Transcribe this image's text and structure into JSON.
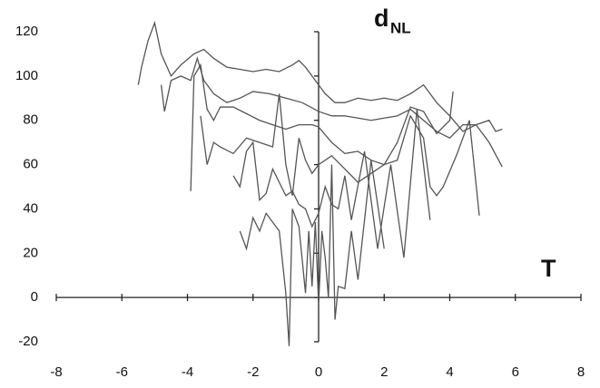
{
  "chart_data": {
    "type": "line",
    "y_label": {
      "main": "d",
      "sub": "NL"
    },
    "x_label": "T",
    "xlim": [
      -8,
      8
    ],
    "xticks": [
      -8,
      -6,
      -4,
      -2,
      0,
      2,
      4,
      6,
      8
    ],
    "ylim": [
      -20,
      120
    ],
    "yticks": [
      -20,
      0,
      20,
      40,
      60,
      80,
      100,
      120
    ],
    "grid": false,
    "series": [
      {
        "color": "#555555",
        "x": [
          -5.5,
          -5.4,
          -5.2,
          -5.0,
          -4.8,
          -4.5,
          -4.2,
          -3.8,
          -3.5,
          -3.2,
          -2.8,
          -2.4,
          -2.0,
          -1.6,
          -1.2,
          -0.8,
          -0.6,
          -0.4,
          -0.2,
          0,
          0.2,
          0.5,
          0.8,
          1.2,
          1.6,
          2.0,
          2.4,
          2.8,
          3.2,
          3.6,
          4.0,
          4.4,
          4.8,
          5.2,
          5.4,
          5.6
        ],
        "values": [
          96,
          104,
          116,
          124,
          110,
          100,
          105,
          110,
          112,
          108,
          104,
          103,
          102,
          103,
          102,
          105,
          107,
          104,
          100,
          96,
          92,
          88,
          88,
          90,
          89,
          90,
          89,
          92,
          96,
          88,
          82,
          75,
          78,
          80,
          75,
          76
        ]
      },
      {
        "color": "#555555",
        "x": [
          -4.8,
          -4.7,
          -4.5,
          -4.2,
          -3.9,
          -3.7,
          -3.5,
          -3.2,
          -2.8,
          -2.4,
          -2.0,
          -1.5,
          -1.0,
          -0.5,
          0,
          0.4,
          0.8,
          1.2,
          1.6,
          2.0,
          2.4,
          2.8,
          3.2,
          3.6,
          4.0,
          4.4,
          4.8,
          5.2,
          5.6
        ],
        "values": [
          96,
          84,
          98,
          100,
          98,
          108,
          98,
          92,
          88,
          90,
          93,
          92,
          90,
          88,
          84,
          82,
          82,
          81,
          80,
          81,
          82,
          85,
          80,
          75,
          72,
          78,
          78,
          70,
          59
        ]
      },
      {
        "color": "#555555",
        "x": [
          -3.9,
          -3.8,
          -3.6,
          -3.4,
          -3.2,
          -3.0,
          -2.6,
          -2.2,
          -1.8,
          -1.4,
          -1.0,
          -0.6,
          -0.2,
          0,
          0.4,
          0.8,
          1.2,
          1.6,
          2.0,
          2.4,
          2.8,
          3.2,
          3.6,
          4.0,
          4.1
        ],
        "values": [
          48,
          100,
          105,
          85,
          80,
          86,
          86,
          83,
          80,
          78,
          76,
          78,
          78,
          77,
          70,
          65,
          66,
          62,
          60,
          70,
          86,
          84,
          74,
          80,
          93
        ]
      },
      {
        "color": "#555555",
        "x": [
          -3.6,
          -3.4,
          -3.2,
          -3.0,
          -2.6,
          -2.2,
          -1.8,
          -1.4,
          -1.2,
          -1.0,
          -0.8,
          -0.6,
          -0.4,
          -0.2,
          0,
          0.4,
          0.8,
          1.2,
          1.6,
          2.0,
          2.4,
          2.8,
          3.2,
          3.4,
          3.6,
          3.8,
          4.2,
          4.6,
          4.9
        ],
        "values": [
          82,
          60,
          70,
          68,
          65,
          72,
          70,
          68,
          92,
          60,
          46,
          72,
          62,
          56,
          60,
          64,
          58,
          52,
          56,
          60,
          62,
          82,
          72,
          50,
          46,
          50,
          64,
          80,
          37
        ]
      },
      {
        "color": "#555555",
        "x": [
          -2.6,
          -2.4,
          -2.2,
          -2.0,
          -1.8,
          -1.6,
          -1.4,
          -1.2,
          -1.0,
          -0.8,
          -0.6,
          -0.4,
          -0.2,
          0,
          0.2,
          0.4,
          0.6,
          0.8,
          1.0,
          1.4,
          1.8,
          2.2,
          2.6,
          3.0,
          3.4
        ],
        "values": [
          55,
          50,
          66,
          70,
          44,
          47,
          58,
          52,
          46,
          48,
          42,
          40,
          32,
          38,
          50,
          42,
          40,
          55,
          35,
          66,
          22,
          60,
          18,
          85,
          35
        ]
      },
      {
        "color": "#555555",
        "x": [
          -2.4,
          -2.2,
          -2.0,
          -1.8,
          -1.6,
          -1.4,
          -1.2,
          -1.0,
          -0.9,
          -0.8,
          -0.6,
          -0.4,
          -0.3,
          -0.2,
          -0.1,
          0,
          0.1,
          0.2,
          0.3,
          0.4,
          0.5,
          0.6,
          0.8,
          1.0,
          1.2,
          1.6,
          2.0
        ],
        "values": [
          30,
          22,
          36,
          30,
          38,
          34,
          30,
          2,
          -22,
          40,
          32,
          2,
          30,
          5,
          34,
          -3,
          30,
          18,
          0,
          60,
          -10,
          5,
          4,
          30,
          8,
          62,
          22
        ]
      }
    ]
  }
}
